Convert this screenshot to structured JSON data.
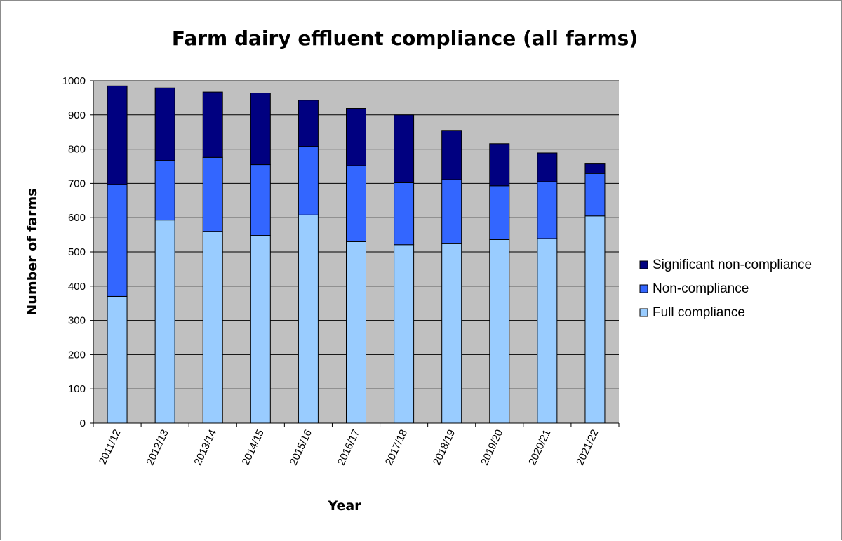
{
  "chart_data": {
    "type": "bar",
    "stacked": true,
    "title": "Farm dairy effluent compliance (all farms)",
    "xlabel": "Year",
    "ylabel": "Number of farms",
    "ylim": [
      0,
      1000
    ],
    "yticks": [
      0,
      100,
      200,
      300,
      400,
      500,
      600,
      700,
      800,
      900,
      1000
    ],
    "grid": true,
    "legend_position": "right",
    "categories": [
      "2011/12",
      "2012/13",
      "2013/14",
      "2014/15",
      "2015/16",
      "2016/17",
      "2017/18",
      "2018/19",
      "2019/20",
      "2020/21",
      "2021/22"
    ],
    "series": [
      {
        "name": "Full compliance",
        "color": "#99CCFF",
        "values": [
          370,
          593,
          560,
          548,
          608,
          530,
          521,
          524,
          536,
          539,
          605
        ]
      },
      {
        "name": "Non-compliance",
        "color": "#3366FF",
        "values": [
          327,
          174,
          216,
          207,
          200,
          222,
          181,
          187,
          157,
          166,
          124
        ]
      },
      {
        "name": "Significant non-compliance",
        "color": "#000080",
        "values": [
          288,
          212,
          191,
          209,
          135,
          167,
          198,
          144,
          123,
          84,
          28
        ]
      }
    ],
    "legend_order": [
      "Significant non-compliance",
      "Non-compliance",
      "Full compliance"
    ],
    "plot_background": "#C0C0C0"
  }
}
